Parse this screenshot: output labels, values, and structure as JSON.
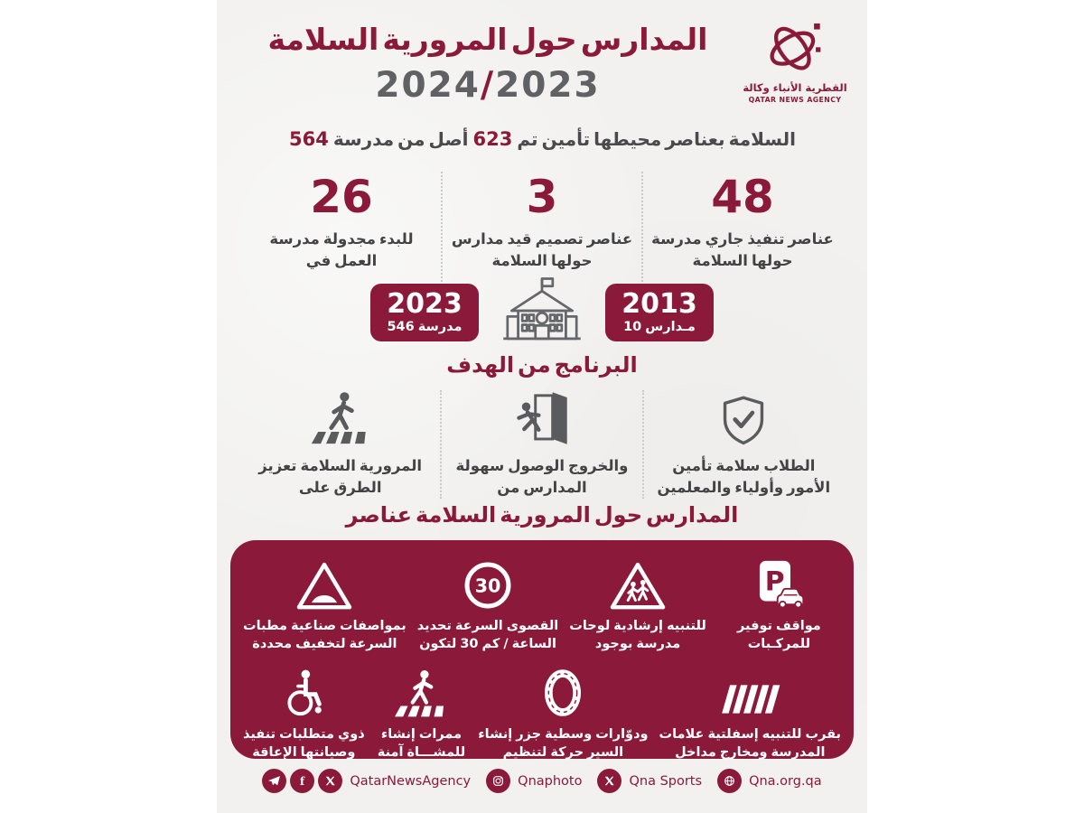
{
  "colors": {
    "maroon": "#8b1a3a",
    "year_gray": "#5f6164",
    "text_gray": "#434345",
    "sheet_bg": "#f2f1ef",
    "white": "#ffffff"
  },
  "header": {
    "title": "السلامة المرورية حول المدارس",
    "year_left": "2024",
    "year_sep": "/",
    "year_right": "2023",
    "logo": {
      "arabic": "وكالة الأنباء القطرية",
      "english": "QATAR NEWS AGENCY",
      "icon": "qna-atom-logo"
    }
  },
  "summary": {
    "num1": "564",
    "text1": "مدرسة من أصل",
    "num2": "623",
    "text2": "تم تأمين محيطها بعناصر السلامة"
  },
  "stats": [
    {
      "value": "26",
      "line1": "مدرسة مجدولة للبدء",
      "line2": "في العمل"
    },
    {
      "value": "3",
      "line1": "مدارس قيد تصميم عناصر",
      "line2": "السلامة حولها"
    },
    {
      "value": "48",
      "line1": "مدرسة جاري تنفيذ عناصر",
      "line2": "السلامة حولها"
    }
  ],
  "timeline": {
    "left": {
      "year": "2023",
      "sub": "546 مدرسة"
    },
    "center_icon": "school-building-icon",
    "right": {
      "year": "2013",
      "sub": "10 مـدارس"
    }
  },
  "goals": {
    "heading": "الهدف من البرنامج",
    "items": [
      {
        "icon": "crosswalk-pedestrian-icon",
        "line1": "تعزيز السلامة المرورية",
        "line2": "على الطرق"
      },
      {
        "icon": "exit-door-icon",
        "line1": "سهولة الوصول والخروج",
        "line2": "من المدارس"
      },
      {
        "icon": "shield-check-icon",
        "line1": "تأمين سلامة الطلاب",
        "line2": "والمعلمين وأولياء الأمور"
      }
    ]
  },
  "elements": {
    "heading": "عناصر السلامة المرورية حول المدارس",
    "row1": [
      {
        "icon": "speed-bump-sign-icon",
        "line1": "مطبات صناعية بمواصفات",
        "line2": "محددة لتخفيف السرعة"
      },
      {
        "icon": "speed-limit-30-icon",
        "sign_text": "30",
        "line1": "تحديد السرعة القصوى",
        "line2": "لتكون 30 كم / الساعة"
      },
      {
        "icon": "school-crossing-sign-icon",
        "line1": "لوحات إرشادية للتنبيه",
        "line2": "بوجود مدرسة"
      },
      {
        "icon": "parking-sign-icon",
        "sign_letter": "P",
        "line1": "توفير مواقف",
        "line2": "للمركـبات"
      }
    ],
    "row2": [
      {
        "icon": "wheelchair-icon",
        "line1": "تنفيذ متطلبات ذوي",
        "line2": "الإعاقة وصيانتها"
      },
      {
        "icon": "pedestrian-crossing-icon",
        "line1": "إنشاء ممرات",
        "line2": "آمنة للمشـــاة"
      },
      {
        "icon": "roundabout-icon",
        "line1": "إنشاء جزر وسطية ودوّارات",
        "line2": "لتنظيم حركة السير"
      },
      {
        "icon": "road-markings-icon",
        "line1": "علامات إسفلتية للتنبيه بقرب",
        "line2": "مداخل ومخارج المدرسة"
      }
    ]
  },
  "footer": {
    "groups": [
      {
        "icons": [
          "telegram-icon",
          "facebook-icon",
          "x-icon"
        ],
        "label": "QatarNewsAgency"
      },
      {
        "icons": [
          "instagram-icon"
        ],
        "label": "Qnaphoto"
      },
      {
        "icons": [
          "x-icon"
        ],
        "label": "Qna  Sports"
      },
      {
        "icons": [
          "globe-icon"
        ],
        "label": "Qna.org.qa"
      }
    ]
  }
}
